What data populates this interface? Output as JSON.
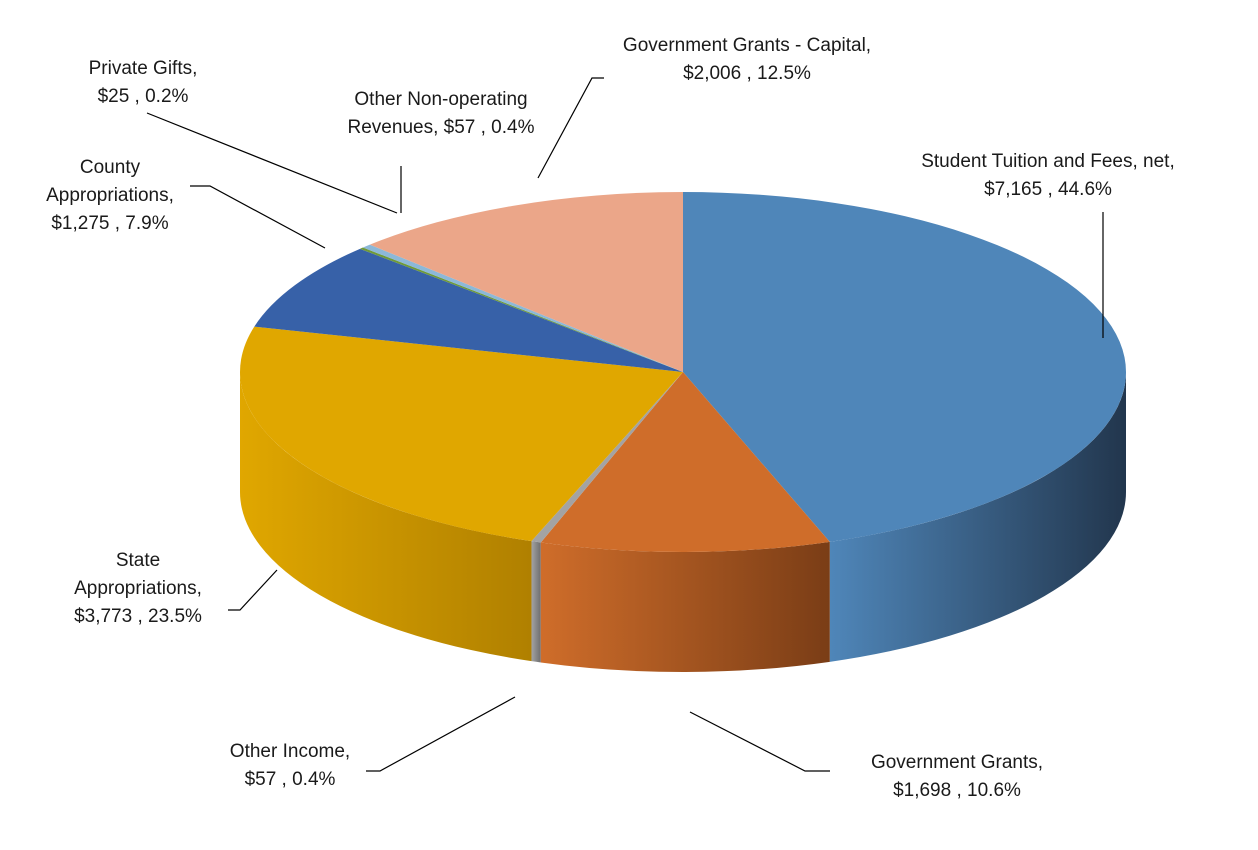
{
  "chart_data": {
    "type": "pie",
    "title": "",
    "style": "3d",
    "legend": "none",
    "slices": [
      {
        "name": "Student Tuition and Fees, net",
        "value": 7165,
        "percent": "44.6%",
        "label_lines": [
          "Student Tuition and Fees, net,",
          "$7,165 , 44.6%"
        ],
        "color": "#4f86b9",
        "side_color": "#22364d"
      },
      {
        "name": "Government Grants",
        "value": 1698,
        "percent": "10.6%",
        "label_lines": [
          "Government Grants,",
          "$1,698 , 10.6%"
        ],
        "color": "#cf6d2a",
        "side_color": "#7a3d16"
      },
      {
        "name": "Other Income",
        "value": 57,
        "percent": "0.4%",
        "label_lines": [
          "Other Income,",
          "$57 , 0.4%"
        ],
        "color": "#a3a3a3",
        "side_color": "#6e6e6e"
      },
      {
        "name": "State Appropriations",
        "value": 3773,
        "percent": "23.5%",
        "label_lines": [
          "State",
          "Appropriations,",
          "$3,773 , 23.5%"
        ],
        "color": "#e0a700",
        "side_color": "#b08000"
      },
      {
        "name": "County Appropriations",
        "value": 1275,
        "percent": "7.9%",
        "label_lines": [
          "County",
          "Appropriations,",
          "$1,275 , 7.9%"
        ],
        "color": "#3761a8",
        "side_color": "#243f70"
      },
      {
        "name": "Private Gifts",
        "value": 25,
        "percent": "0.2%",
        "label_lines": [
          "Private Gifts,",
          "$25 , 0.2%"
        ],
        "color": "#6f9a3a",
        "side_color": "#4a6a25"
      },
      {
        "name": "Other Non-operating Revenues",
        "value": 57,
        "percent": "0.4%",
        "label_lines": [
          "Other Non-operating",
          "Revenues, $57 , 0.4%"
        ],
        "color": "#8cb8d8",
        "side_color": "#5d86a6"
      },
      {
        "name": "Government Grants - Capital",
        "value": 2006,
        "percent": "12.5%",
        "label_lines": [
          "Government Grants - Capital,",
          "$2,006 , 12.5%"
        ],
        "color": "#eba689",
        "side_color": "#b8775d"
      }
    ]
  }
}
